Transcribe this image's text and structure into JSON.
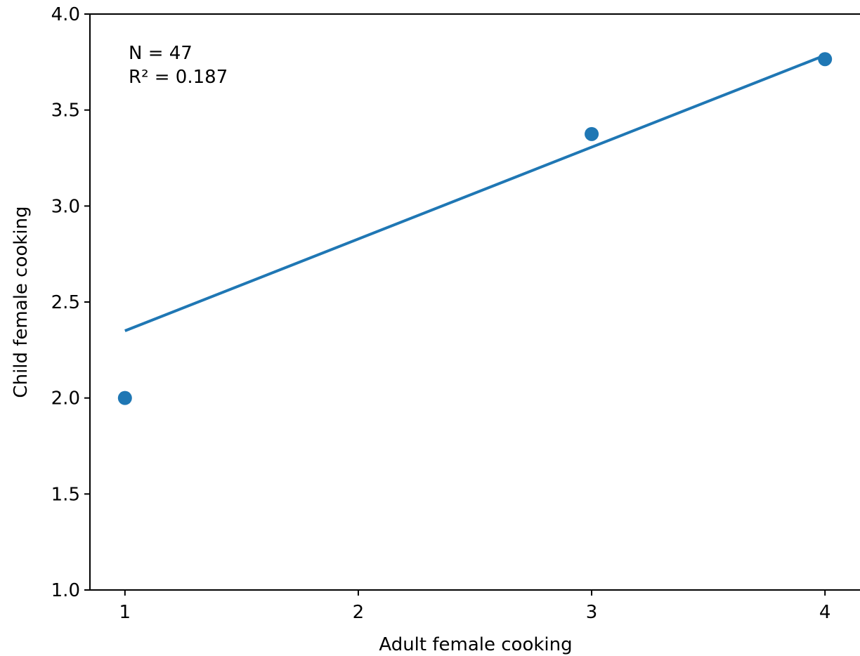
{
  "chart_data": {
    "type": "scatter",
    "xlabel": "Adult female cooking",
    "ylabel": "Child female cooking",
    "xlim": [
      0.85,
      4.15
    ],
    "ylim": [
      1.0,
      4.0
    ],
    "x_ticks": [
      1,
      2,
      3,
      4
    ],
    "x_tick_labels": [
      "1",
      "2",
      "3",
      "4"
    ],
    "y_ticks": [
      1.0,
      1.5,
      2.0,
      2.5,
      3.0,
      3.5,
      4.0
    ],
    "y_tick_labels": [
      "1.0",
      "1.5",
      "2.0",
      "2.5",
      "3.0",
      "3.5",
      "4.0"
    ],
    "grid": false,
    "series": [
      {
        "kind": "scatter",
        "color": "#1f77b4",
        "points": [
          {
            "x": 1,
            "y": 2.0
          },
          {
            "x": 3,
            "y": 3.375
          },
          {
            "x": 4,
            "y": 3.765
          }
        ]
      },
      {
        "kind": "fit-line",
        "color": "#1f77b4",
        "points": [
          {
            "x": 1,
            "y": 2.35
          },
          {
            "x": 4,
            "y": 3.785
          }
        ]
      }
    ],
    "annotations": {
      "n_text": "N = 47",
      "r2_text": "R² = 0.187"
    }
  }
}
